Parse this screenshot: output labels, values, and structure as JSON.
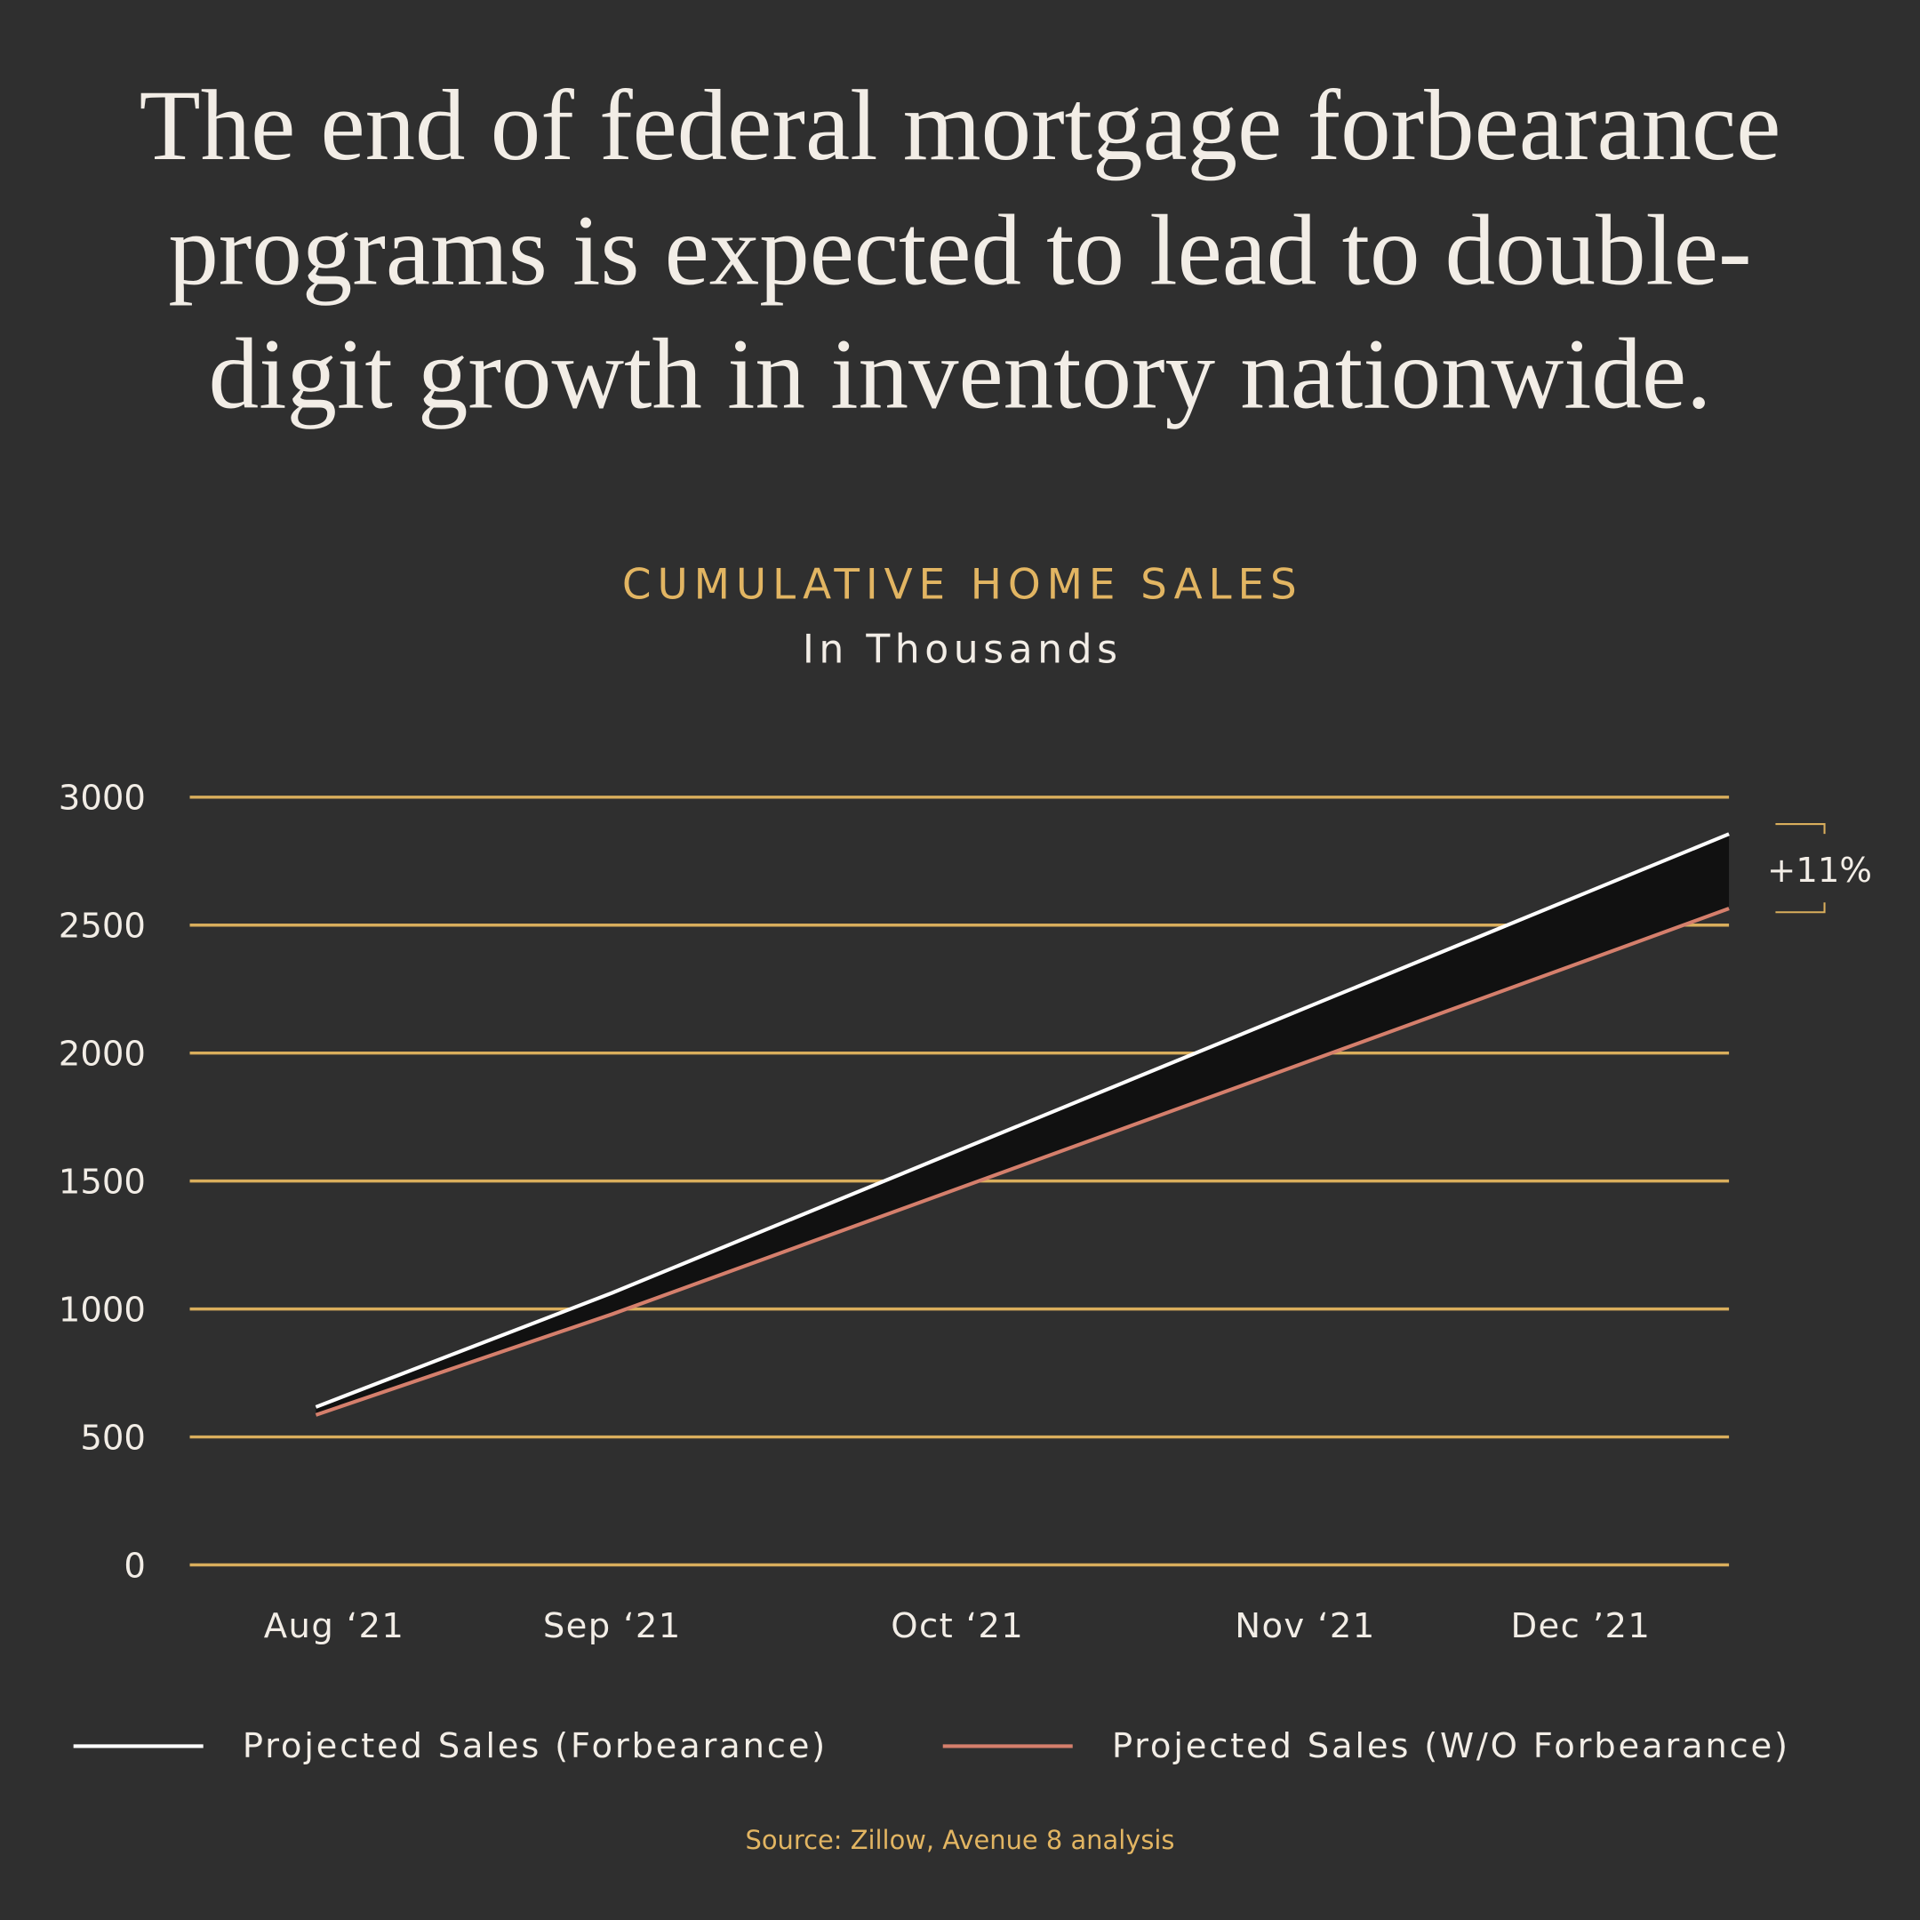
{
  "headline": [
    "The end of federal mortgage forbearance",
    "programs is expected to lead to double-",
    "digit growth in inventory nationwide."
  ],
  "chart_data": {
    "type": "line",
    "title": "CUMULATIVE HOME SALES",
    "subtitle": "In Thousands",
    "categories": [
      "Aug ‘21",
      "Sep ‘21",
      "Oct ‘21",
      "Nov ‘21",
      "Dec ’21",
      null
    ],
    "series": [
      {
        "name": "Projected Sales (Forbearance)",
        "color": "#ffffff",
        "values": [
          617,
          1063,
          1618,
          2176,
          2618,
          2856
        ]
      },
      {
        "name": "Projected Sales (W/O Forbearance)",
        "color": "#d57f6c",
        "values": [
          586,
          980,
          1470,
          1963,
          2354,
          2565
        ]
      }
    ],
    "ylim": [
      0,
      3000
    ],
    "yticks": [
      0,
      500,
      1000,
      1500,
      2000,
      2500,
      3000
    ],
    "grid": true,
    "grid_color": "#d9ae5c",
    "annotation": "+11%",
    "source": "Source: Zillow, Avenue 8 analysis"
  }
}
